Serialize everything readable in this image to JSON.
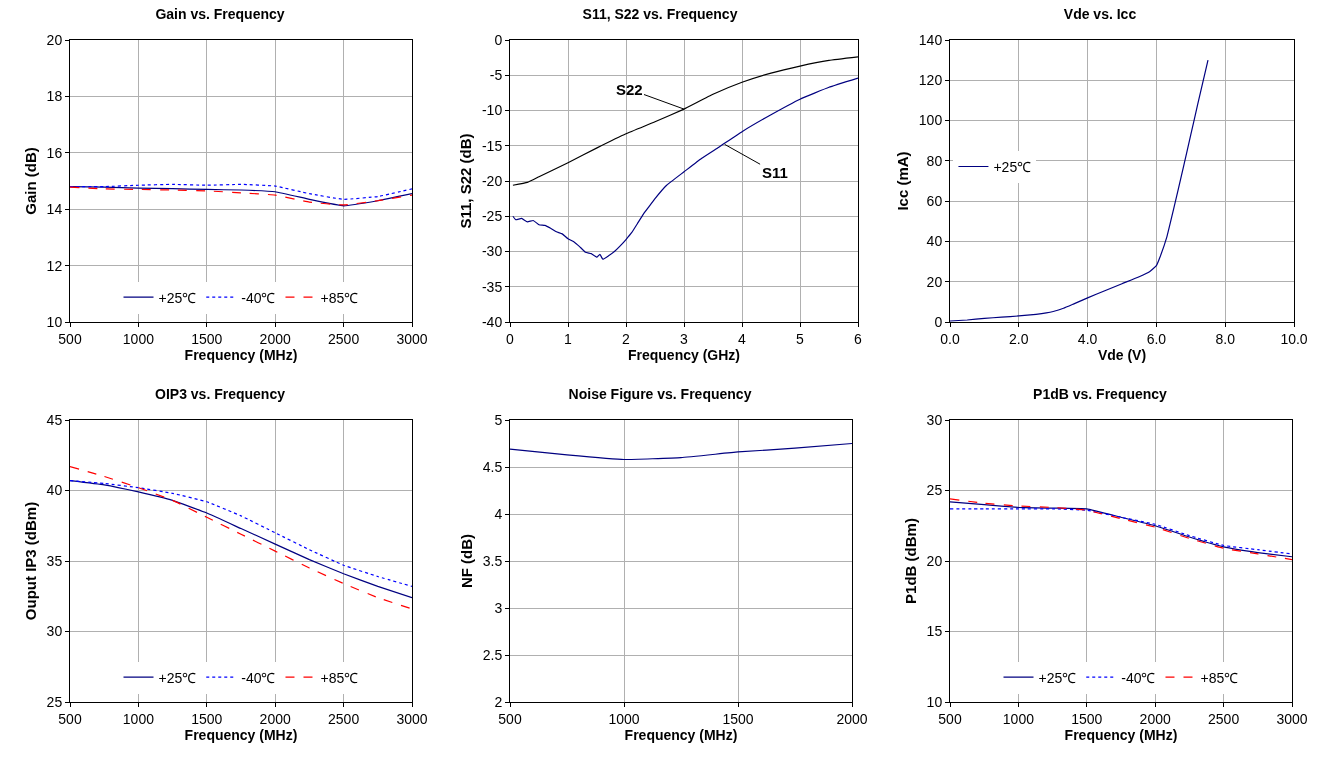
{
  "chart_data": [
    {
      "type": "line",
      "title": "Gain vs. Frequency",
      "xlabel": "Frequency (MHz)",
      "ylabel": "Gain (dB)",
      "x": [
        500,
        750,
        1000,
        1250,
        1500,
        1750,
        2000,
        2250,
        2500,
        2750,
        3000
      ],
      "xlim": [
        500,
        3000
      ],
      "xticks": [
        500,
        1000,
        1500,
        2000,
        2500,
        3000
      ],
      "ylim": [
        10,
        20
      ],
      "yticks": [
        10,
        12,
        14,
        16,
        18,
        20
      ],
      "grid": true,
      "legend": "bottom",
      "series": [
        {
          "name": "+25℃",
          "color": "#000080",
          "line_style": "solid",
          "values": [
            14.8,
            14.78,
            14.75,
            14.73,
            14.7,
            14.68,
            14.62,
            14.35,
            14.12,
            14.3,
            14.55
          ]
        },
        {
          "name": "-40℃",
          "color": "#0000ff",
          "line_style": "dotted",
          "values": [
            14.8,
            14.8,
            14.85,
            14.88,
            14.85,
            14.88,
            14.82,
            14.55,
            14.35,
            14.45,
            14.72
          ]
        },
        {
          "name": "+85℃",
          "color": "#ff0000",
          "line_style": "dashed",
          "values": [
            14.78,
            14.72,
            14.7,
            14.68,
            14.65,
            14.58,
            14.5,
            14.25,
            14.15,
            14.3,
            14.5
          ]
        }
      ]
    },
    {
      "type": "line",
      "title": "S11, S22 vs. Frequency",
      "xlabel": "Frequency (GHz)",
      "ylabel": "S11, S22 (dB)",
      "xlim": [
        0,
        6
      ],
      "xticks": [
        0,
        1,
        2,
        3,
        4,
        5,
        6
      ],
      "ylim": [
        -40,
        0
      ],
      "yticks": [
        -40,
        -35,
        -30,
        -25,
        -20,
        -15,
        -10,
        -5,
        0
      ],
      "grid": true,
      "annotations": [
        {
          "text": "S22",
          "x": 3,
          "y": -9.8
        },
        {
          "text": "S11",
          "x": 3.7,
          "y": -14.8
        }
      ],
      "series": [
        {
          "color": "#000000",
          "line_style": "solid",
          "x": [
            0.05,
            0.3,
            0.5,
            1,
            1.5,
            2,
            2.5,
            3,
            3.5,
            4,
            4.5,
            5,
            5.5,
            6
          ],
          "values": [
            -20.6,
            -20.2,
            -19.4,
            -17.4,
            -15.3,
            -13.3,
            -11.6,
            -9.8,
            -7.7,
            -6,
            -4.7,
            -3.7,
            -2.9,
            -2.4
          ]
        },
        {
          "color": "#000080",
          "line_style": "solid",
          "x": [
            0.05,
            0.1,
            0.2,
            0.3,
            0.4,
            0.5,
            0.6,
            0.7,
            0.8,
            0.9,
            1,
            1.1,
            1.2,
            1.3,
            1.4,
            1.5,
            1.55,
            1.6,
            1.7,
            1.8,
            1.9,
            2,
            2.1,
            2.2,
            2.3,
            2.4,
            2.5,
            2.7,
            3,
            3.3,
            3.6,
            4,
            4.5,
            5,
            5.5,
            6
          ],
          "values": [
            -25,
            -25.5,
            -25.3,
            -25.8,
            -25.6,
            -26.2,
            -26.3,
            -26.7,
            -27.2,
            -27.5,
            -28.2,
            -28.6,
            -29.3,
            -30.1,
            -30.3,
            -30.8,
            -30.4,
            -31.1,
            -30.6,
            -30,
            -29.2,
            -28.3,
            -27.3,
            -26,
            -24.7,
            -23.6,
            -22.5,
            -20.6,
            -18.7,
            -16.8,
            -15.2,
            -13,
            -10.6,
            -8.4,
            -6.7,
            -5.4
          ]
        }
      ]
    },
    {
      "type": "line",
      "title": "Vde vs. Icc",
      "xlabel": "Vde (V)",
      "ylabel": "Icc (mA)",
      "xlim": [
        0,
        10
      ],
      "xticks": [
        {
          "value": 0,
          "label": "0.0"
        },
        {
          "value": 2,
          "label": "2.0"
        },
        {
          "value": 4,
          "label": "4.0"
        },
        {
          "value": 6,
          "label": "6.0"
        },
        {
          "value": 8,
          "label": "8.0"
        },
        {
          "value": 10,
          "label": "10.0"
        }
      ],
      "ylim": [
        0,
        140
      ],
      "yticks": [
        0,
        20,
        40,
        60,
        80,
        100,
        120,
        140
      ],
      "grid": true,
      "legend": "left",
      "series": [
        {
          "name": "+25℃",
          "color": "#000080",
          "line_style": "solid",
          "x": [
            0,
            0.5,
            1,
            1.5,
            2,
            2.5,
            2.8,
            3,
            3.3,
            3.6,
            4,
            4.5,
            5,
            5.5,
            5.8,
            6,
            6.1,
            6.3,
            6.5,
            6.8,
            7,
            7.2,
            7.5
          ],
          "values": [
            0.5,
            1,
            1.8,
            2.4,
            3,
            3.8,
            4.5,
            5.2,
            6.8,
            9,
            12,
            15.5,
            19,
            22.5,
            25,
            28,
            32,
            42,
            56,
            78,
            93,
            108,
            130
          ]
        }
      ]
    },
    {
      "type": "line",
      "title": "OIP3 vs. Frequency",
      "xlabel": "Frequency (MHz)",
      "ylabel": "Ouput IP3 (dBm)",
      "x": [
        500,
        750,
        1000,
        1250,
        1500,
        1750,
        2000,
        2250,
        2500,
        2750,
        3000
      ],
      "xlim": [
        500,
        3000
      ],
      "xticks": [
        500,
        1000,
        1500,
        2000,
        2500,
        3000
      ],
      "ylim": [
        25,
        45
      ],
      "yticks": [
        25,
        30,
        35,
        40,
        45
      ],
      "grid": true,
      "legend": "bottom",
      "series": [
        {
          "name": "+25℃",
          "color": "#000080",
          "line_style": "solid",
          "values": [
            40.7,
            40.4,
            39.9,
            39.3,
            38.4,
            37.3,
            36.2,
            35.1,
            34.1,
            33.2,
            32.4
          ]
        },
        {
          "name": "-40℃",
          "color": "#0000ff",
          "line_style": "dotted",
          "values": [
            40.7,
            40.5,
            40.2,
            39.8,
            39.2,
            38.2,
            37,
            35.8,
            34.7,
            33.9,
            33.2
          ]
        },
        {
          "name": "+85℃",
          "color": "#ff0000",
          "line_style": "dashed",
          "values": [
            41.7,
            41,
            40.2,
            39.3,
            38.1,
            36.9,
            35.7,
            34.5,
            33.4,
            32.4,
            31.6
          ]
        }
      ]
    },
    {
      "type": "line",
      "title": "Noise Figure vs. Frequency",
      "xlabel": "Frequency (MHz)",
      "ylabel": "NF (dB)",
      "x": [
        500,
        750,
        1000,
        1250,
        1500,
        1750,
        2000
      ],
      "xlim": [
        500,
        2000
      ],
      "xticks": [
        500,
        1000,
        1500,
        2000
      ],
      "ylim": [
        2,
        5
      ],
      "yticks": [
        2,
        2.5,
        3,
        3.5,
        4,
        4.5,
        5
      ],
      "grid": true,
      "series": [
        {
          "color": "#000080",
          "line_style": "solid",
          "values": [
            4.69,
            4.63,
            4.58,
            4.6,
            4.66,
            4.7,
            4.75
          ]
        }
      ]
    },
    {
      "type": "line",
      "title": "P1dB vs. Frequency",
      "xlabel": "Frequency (MHz)",
      "ylabel": "P1dB (dBm)",
      "x": [
        500,
        750,
        1000,
        1250,
        1500,
        1750,
        2000,
        2250,
        2500,
        2750,
        3000
      ],
      "xlim": [
        500,
        3000
      ],
      "xticks": [
        500,
        1000,
        1500,
        2000,
        2500,
        3000
      ],
      "ylim": [
        10,
        30
      ],
      "yticks": [
        10,
        15,
        20,
        25,
        30
      ],
      "grid": true,
      "legend": "bottom",
      "series": [
        {
          "name": "+25℃",
          "color": "#000080",
          "line_style": "solid",
          "values": [
            24.2,
            24,
            23.8,
            23.75,
            23.7,
            23.1,
            22.5,
            21.7,
            21,
            20.6,
            20.3
          ]
        },
        {
          "name": "-40℃",
          "color": "#0000ff",
          "line_style": "dotted",
          "values": [
            23.7,
            23.7,
            23.7,
            23.7,
            23.6,
            23.1,
            22.6,
            21.8,
            21.1,
            20.8,
            20.5
          ]
        },
        {
          "name": "+85℃",
          "color": "#ff0000",
          "line_style": "dashed",
          "values": [
            24.4,
            24.1,
            23.9,
            23.8,
            23.6,
            23,
            22.4,
            21.6,
            20.9,
            20.5,
            20.1
          ]
        }
      ]
    }
  ]
}
